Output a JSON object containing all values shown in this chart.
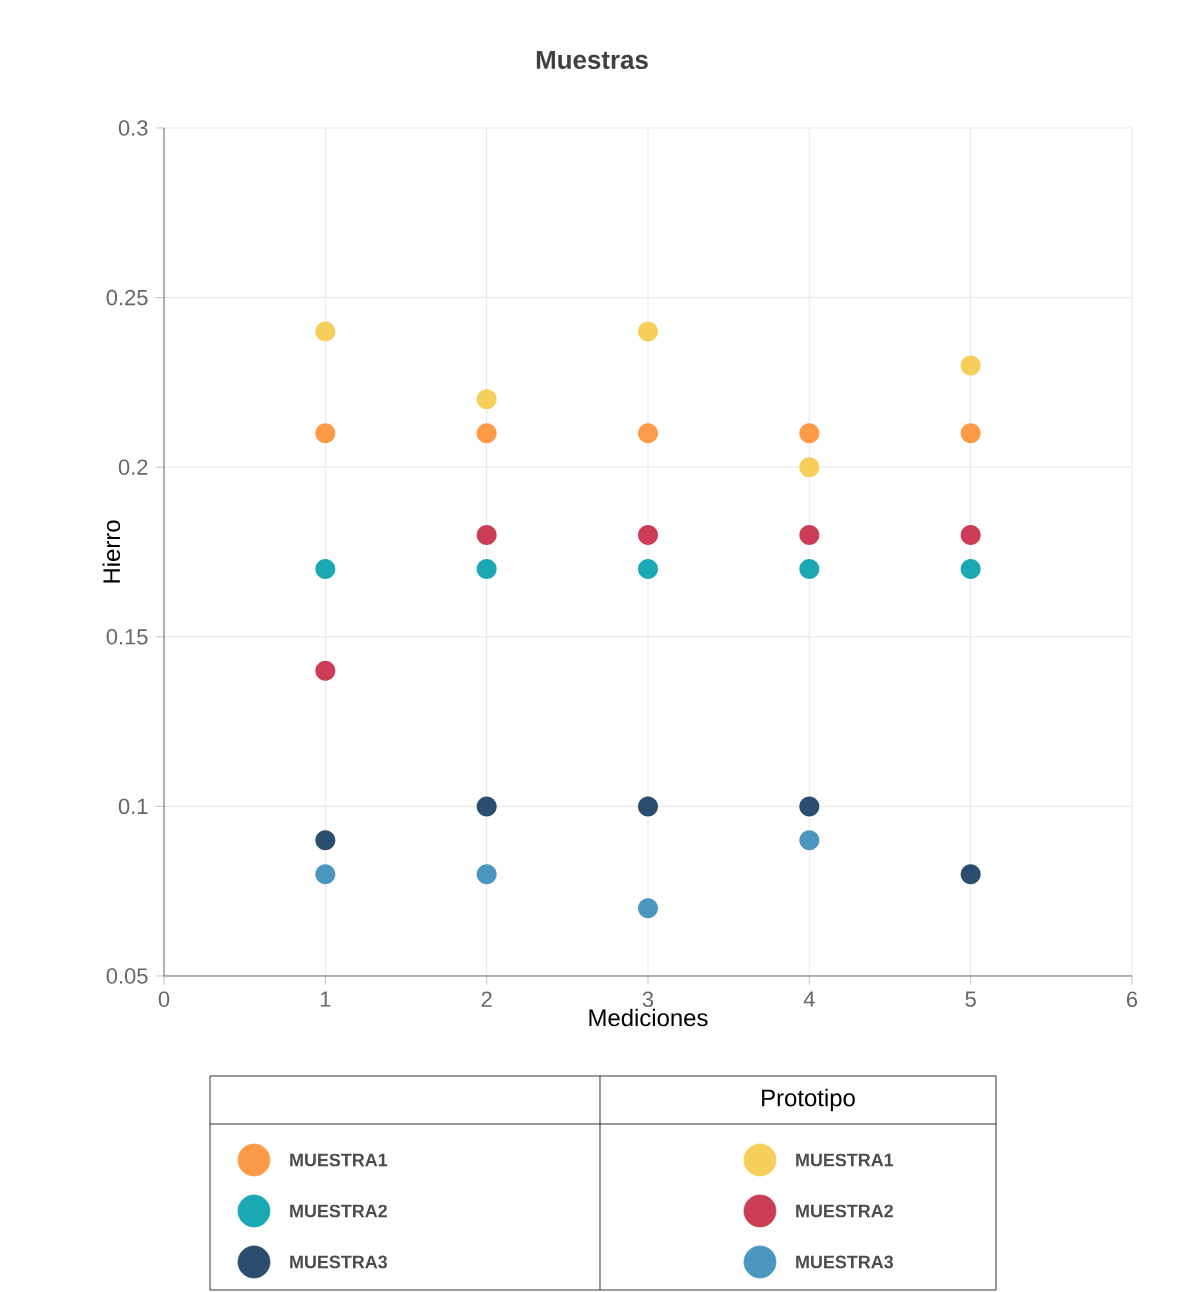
{
  "chart_data": {
    "type": "scatter",
    "title": "Muestras",
    "xlabel": "Mediciones",
    "ylabel": "Hierro",
    "x": [
      1,
      2,
      3,
      4,
      5
    ],
    "series": [
      {
        "name": "MUESTRA1",
        "color": "#fd9a47",
        "values": [
          0.21,
          0.21,
          0.21,
          0.21,
          0.21
        ]
      },
      {
        "name": "MUESTRA2",
        "color": "#1aa9b3",
        "values": [
          0.17,
          0.17,
          0.17,
          0.17,
          0.17
        ]
      },
      {
        "name": "MUESTRA3",
        "color": "#2b4d6e",
        "values": [
          0.09,
          0.1,
          0.1,
          0.1,
          0.08
        ]
      },
      {
        "name": "MUESTRA1",
        "color": "#f6cf5a",
        "values": [
          0.24,
          0.22,
          0.24,
          0.2,
          0.23
        ]
      },
      {
        "name": "MUESTRA2",
        "color": "#cc3c55",
        "values": [
          0.14,
          0.18,
          0.18,
          0.18,
          0.18
        ]
      },
      {
        "name": "MUESTRA3",
        "color": "#4c97c0",
        "values": [
          0.08,
          0.08,
          0.07,
          0.09,
          null
        ]
      }
    ],
    "annotations": [
      "Prototipo"
    ],
    "xlim": [
      0,
      6
    ],
    "xticks": [
      0,
      1,
      2,
      3,
      4,
      5,
      6
    ],
    "ylim": [
      0.05,
      0.3
    ],
    "yticks": [
      0.05,
      0.1,
      0.15,
      0.2,
      0.25,
      0.3
    ],
    "grid": true,
    "legend": "bottom",
    "marker": "circle"
  }
}
